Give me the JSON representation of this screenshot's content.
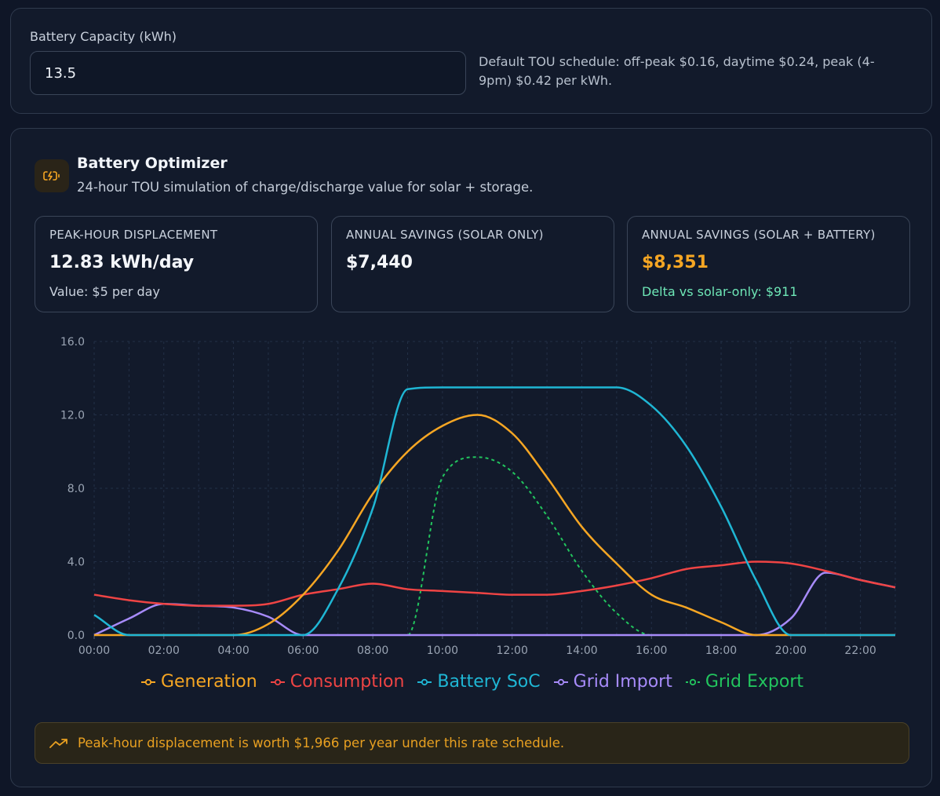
{
  "battery_capacity": {
    "label": "Battery Capacity (kWh)",
    "value": "13.5"
  },
  "tou_note": "Default TOU schedule: off-peak $0.16, daytime $0.24, peak (4-9pm) $0.42 per kWh.",
  "optimizer": {
    "icon": "battery-charging-icon",
    "title": "Battery Optimizer",
    "subtitle": "24-hour TOU simulation of charge/discharge value for solar + storage."
  },
  "cards": [
    {
      "label": "PEAK-HOUR DISPLACEMENT",
      "value": "12.83 kWh/day",
      "sub": "Value: $5 per day"
    },
    {
      "label": "ANNUAL SAVINGS (SOLAR ONLY)",
      "value": "$7,440",
      "sub": ""
    },
    {
      "label": "ANNUAL SAVINGS (SOLAR + BATTERY)",
      "value": "$8,351",
      "sub": "Delta vs solar-only: $911"
    }
  ],
  "colors": {
    "generation": "#f6a623",
    "consumption": "#ef4444",
    "battery_soc": "#1fb6d4",
    "grid_import": "#a78bfa",
    "grid_export": "#22c55e",
    "accent_orange": "#f6a623",
    "accent_green": "#6ee7b7"
  },
  "chart_data": {
    "type": "line",
    "title": "",
    "xlabel": "",
    "ylabel": "",
    "x": [
      0,
      1,
      2,
      3,
      4,
      5,
      6,
      7,
      8,
      9,
      10,
      11,
      12,
      13,
      14,
      15,
      16,
      17,
      18,
      19,
      20,
      21,
      22,
      23
    ],
    "x_tick_labels": [
      "00:00",
      "02:00",
      "04:00",
      "06:00",
      "08:00",
      "10:00",
      "12:00",
      "14:00",
      "16:00",
      "18:00",
      "20:00",
      "22:00"
    ],
    "x_tick_positions": [
      0,
      2,
      4,
      6,
      8,
      10,
      12,
      14,
      16,
      18,
      20,
      22
    ],
    "y_ticks": [
      "0.0",
      "4.0",
      "8.0",
      "12.0",
      "16.0"
    ],
    "ylim": [
      0,
      16
    ],
    "grid": true,
    "series": [
      {
        "name": "Generation",
        "key": "generation",
        "dashed": false,
        "values": [
          0,
          0,
          0,
          0,
          0,
          0.6,
          2.2,
          4.6,
          7.7,
          10.0,
          11.4,
          12.0,
          11.0,
          8.6,
          5.9,
          3.9,
          2.2,
          1.5,
          0.7,
          0,
          0,
          0,
          0,
          0
        ]
      },
      {
        "name": "Consumption",
        "key": "consumption",
        "dashed": false,
        "values": [
          2.2,
          1.9,
          1.7,
          1.6,
          1.6,
          1.7,
          2.2,
          2.5,
          2.8,
          2.5,
          2.4,
          2.3,
          2.2,
          2.2,
          2.4,
          2.7,
          3.1,
          3.6,
          3.8,
          4.0,
          3.9,
          3.5,
          3.0,
          2.6
        ]
      },
      {
        "name": "Battery SoC",
        "key": "battery_soc",
        "dashed": false,
        "values": [
          1.1,
          0,
          0,
          0,
          0,
          0,
          0,
          2.5,
          6.9,
          13.4,
          13.5,
          13.5,
          13.5,
          13.5,
          13.5,
          13.5,
          12.5,
          10.3,
          7.0,
          3.0,
          0,
          0,
          0,
          0
        ]
      },
      {
        "name": "Grid Import",
        "key": "grid_import",
        "dashed": false,
        "values": [
          0,
          0.9,
          1.7,
          1.6,
          1.5,
          1.0,
          0,
          0,
          0,
          0,
          0,
          0,
          0,
          0,
          0,
          0,
          0,
          0,
          0,
          0,
          0.9,
          3.4,
          3.0,
          2.6
        ]
      },
      {
        "name": "Grid Export",
        "key": "grid_export",
        "dashed": true,
        "values": [
          0,
          0,
          0,
          0,
          0,
          0,
          0,
          0,
          0,
          0,
          8.6,
          9.7,
          8.9,
          6.5,
          3.5,
          1.2,
          0,
          0,
          0,
          0,
          0,
          0,
          0,
          0
        ]
      }
    ]
  },
  "alert": {
    "icon": "trending-up-icon",
    "text": "Peak-hour displacement is worth $1,966 per year under this rate schedule."
  }
}
